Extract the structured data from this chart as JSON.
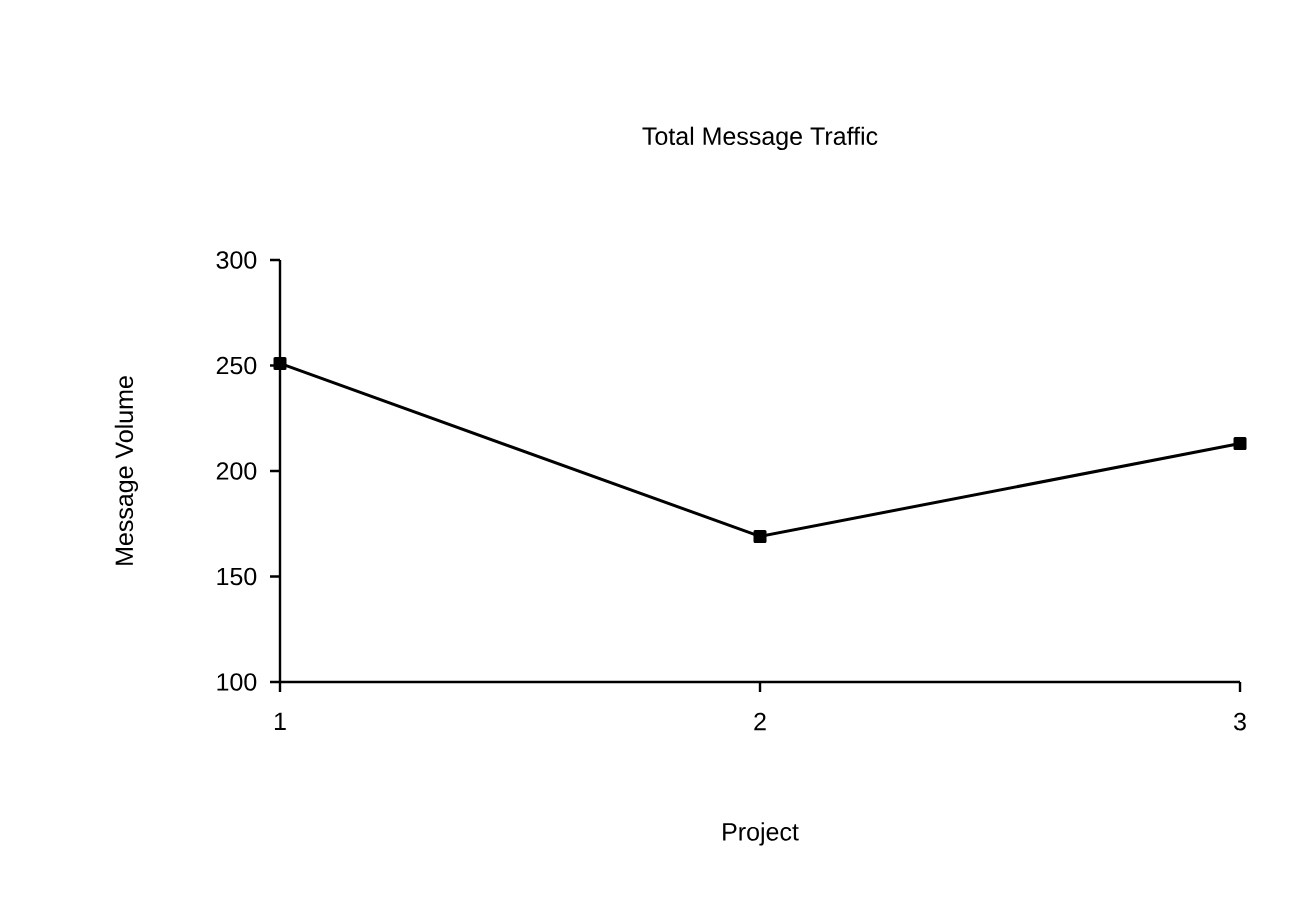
{
  "chart_data": {
    "type": "line",
    "title": "Total Message Traffic",
    "xlabel": "Project",
    "ylabel": "Message Volume",
    "x": [
      1,
      2,
      3
    ],
    "series": [
      {
        "color": "#000000",
        "values": [
          251,
          169,
          213
        ]
      }
    ],
    "xlim": [
      1,
      3
    ],
    "xticks": [
      1,
      2,
      3
    ],
    "ylim": [
      100,
      300
    ],
    "yticks": [
      100,
      150,
      200,
      250,
      300
    ],
    "marker": "square",
    "line_style": "solid",
    "grid": false
  }
}
